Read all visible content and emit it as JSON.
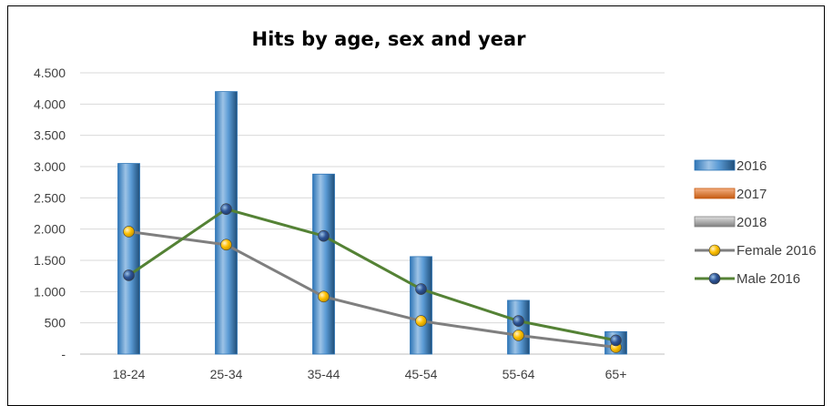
{
  "chart_data": {
    "type": "bar",
    "title": "Hits by age, sex and year",
    "xlabel": "",
    "ylabel": "",
    "categories": [
      "18-24",
      "25-34",
      "35-44",
      "45-54",
      "55-64",
      "65+"
    ],
    "ylim": [
      0,
      4500
    ],
    "yticks": [
      0,
      500,
      1000,
      1500,
      2000,
      2500,
      3000,
      3500,
      4000,
      4500
    ],
    "ytick_labels": [
      "-",
      "500",
      "1.000",
      "1.500",
      "2.000",
      "2.500",
      "3.000",
      "3.500",
      "4.000",
      "4.500"
    ],
    "grid": true,
    "legend_position": "right",
    "series": [
      {
        "name": "2016",
        "kind": "bar",
        "color": "#5B9BD5",
        "values": [
          3050,
          4200,
          2880,
          1560,
          860,
          360
        ]
      },
      {
        "name": "2017",
        "kind": "bar",
        "color": "#ED7D31",
        "values": [
          0,
          0,
          0,
          0,
          0,
          0
        ]
      },
      {
        "name": "2018",
        "kind": "bar",
        "color": "#A5A5A5",
        "values": [
          0,
          0,
          0,
          0,
          0,
          0
        ]
      },
      {
        "name": "Female 2016",
        "kind": "line",
        "color": "#7F7F7F",
        "marker_color": "#FFC000",
        "values": [
          1960,
          1750,
          920,
          530,
          300,
          110
        ]
      },
      {
        "name": "Male 2016",
        "kind": "line",
        "color": "#548235",
        "marker_color": "#2E5597",
        "values": [
          1260,
          2320,
          1890,
          1040,
          530,
          220
        ]
      }
    ]
  }
}
